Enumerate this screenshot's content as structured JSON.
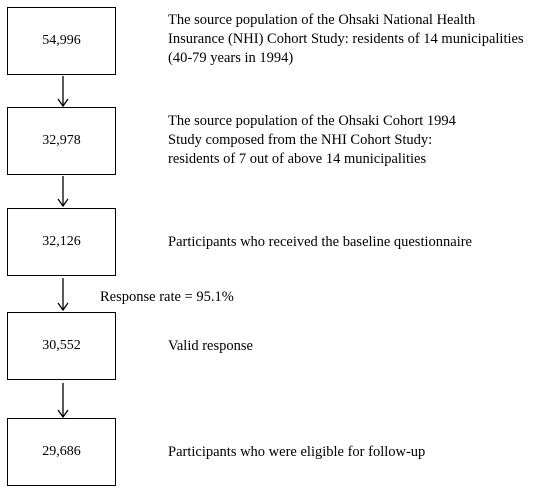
{
  "steps": [
    {
      "count": "54,996",
      "lines": [
        "The source population of the Ohsaki National Health",
        "Insurance (NHI) Cohort Study: residents of 14 municipalities",
        "(40-79 years in 1994)"
      ]
    },
    {
      "count": "32,978",
      "lines": [
        "The source population of the Ohsaki Cohort 1994",
        "Study composed from the NHI Cohort Study:",
        "residents of 7 out of above 14 municipalities"
      ]
    },
    {
      "count": "32,126",
      "lines": [
        "Participants who received the baseline questionnaire"
      ]
    },
    {
      "count": "30,552",
      "lines": [
        "Valid response"
      ]
    },
    {
      "count": "29,686",
      "lines": [
        "Participants who were eligible for follow-up"
      ]
    }
  ],
  "response_note": "Response rate = 95.1%"
}
